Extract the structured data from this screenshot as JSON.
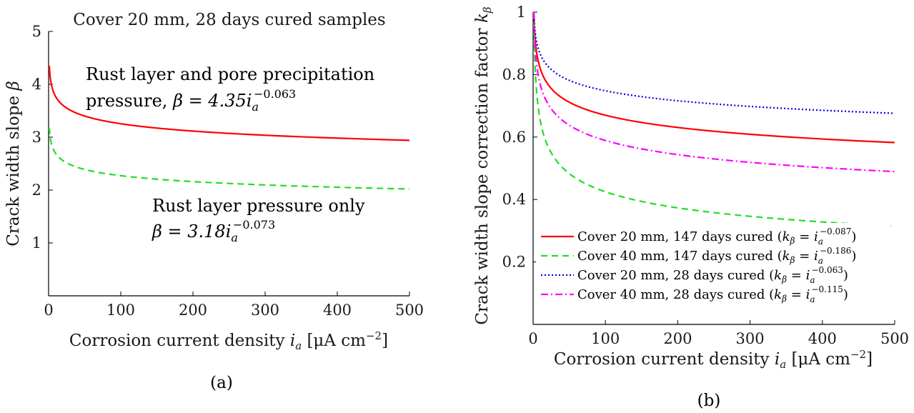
{
  "chart_data": [
    {
      "type": "line",
      "title": "Cover 20 mm, 28 days cured samples",
      "xlabel": "Corrosion current density i_a [μA cm^−2]",
      "ylabel": "Crack width slope β",
      "xlim": [
        0,
        500
      ],
      "ylim": [
        0,
        5
      ],
      "xticks": [
        0,
        100,
        200,
        300,
        400,
        500
      ],
      "yticks": [
        1,
        2,
        3,
        4,
        5
      ],
      "grid": false,
      "caption": "(a)",
      "series": [
        {
          "name": "",
          "color": "#ff0000",
          "style": "solid",
          "coef": 4.35,
          "exp": -0.063,
          "x": [
            1,
            5,
            10,
            20,
            50,
            100,
            150,
            200,
            250,
            300,
            350,
            400,
            450,
            500
          ],
          "values": [
            4.35,
            3.92,
            3.75,
            3.59,
            3.4,
            3.25,
            3.17,
            3.11,
            3.07,
            3.03,
            3.0,
            2.98,
            2.95,
            2.93
          ]
        },
        {
          "name": "",
          "color": "#22dd22",
          "style": "dashed",
          "coef": 3.18,
          "exp": -0.073,
          "x": [
            1,
            5,
            10,
            20,
            50,
            100,
            150,
            200,
            250,
            300,
            350,
            400,
            450,
            500
          ],
          "values": [
            3.18,
            2.81,
            2.68,
            2.55,
            2.4,
            2.28,
            2.22,
            2.17,
            2.14,
            2.11,
            2.08,
            2.06,
            2.04,
            2.03
          ]
        }
      ],
      "annotations": [
        {
          "line1": "Rust layer and pore precipitation",
          "line2_prefix": "pressure, ",
          "line2_lhs": "β = 4.35",
          "line2_var": "i",
          "line2_sub": "a",
          "line2_sup": "−0.063"
        },
        {
          "line1": "Rust layer pressure only",
          "line2_prefix": "",
          "line2_lhs": "β = 3.18",
          "line2_var": "i",
          "line2_sub": "a",
          "line2_sup": "−0.073"
        }
      ]
    },
    {
      "type": "line",
      "title": "",
      "xlabel": "Corrosion current density i_a [μA cm^−2]",
      "ylabel": "Crack width slope correction factor k_β",
      "xlim": [
        0,
        500
      ],
      "ylim": [
        0,
        1
      ],
      "xticks": [
        0,
        100,
        200,
        300,
        400,
        500
      ],
      "yticks": [
        0.2,
        0.4,
        0.6,
        0.8,
        1
      ],
      "ytick_labels": [
        "0.2",
        "0.4",
        "0.6",
        "0.8",
        "1"
      ],
      "grid": false,
      "legend_position": "bottom-right",
      "caption": "(b)",
      "series": [
        {
          "name": "Cover 20 mm, 147 days cured",
          "exp_label": "−0.087",
          "color": "#ff0000",
          "style": "solid",
          "exp": -0.087,
          "x": [
            1,
            5,
            10,
            20,
            50,
            100,
            150,
            200,
            250,
            300,
            350,
            400,
            450,
            500
          ],
          "values": [
            1.0,
            0.87,
            0.82,
            0.77,
            0.71,
            0.67,
            0.65,
            0.63,
            0.62,
            0.61,
            0.6,
            0.59,
            0.59,
            0.58
          ]
        },
        {
          "name": "Cover 40 mm, 147 days cured",
          "exp_label": "−0.186",
          "color": "#22dd22",
          "style": "dashed",
          "exp": -0.186,
          "x": [
            1,
            5,
            10,
            20,
            50,
            100,
            150,
            200,
            250,
            300,
            350,
            400,
            450,
            500
          ],
          "values": [
            1.0,
            0.74,
            0.65,
            0.57,
            0.48,
            0.42,
            0.39,
            0.37,
            0.36,
            0.35,
            0.34,
            0.33,
            0.32,
            0.31
          ]
        },
        {
          "name": "Cover 20 mm, 28 days cured",
          "exp_label": "−0.063",
          "color": "#0000dd",
          "style": "dotted",
          "exp": -0.063,
          "x": [
            1,
            5,
            10,
            20,
            50,
            100,
            150,
            200,
            250,
            300,
            350,
            400,
            450,
            500
          ],
          "values": [
            1.0,
            0.9,
            0.86,
            0.83,
            0.78,
            0.75,
            0.73,
            0.72,
            0.71,
            0.7,
            0.69,
            0.69,
            0.68,
            0.68
          ]
        },
        {
          "name": "Cover 40 mm, 28 days cured",
          "exp_label": "−0.115",
          "color": "#ff00ff",
          "style": "dashdot",
          "exp": -0.115,
          "x": [
            1,
            5,
            10,
            20,
            50,
            100,
            150,
            200,
            250,
            300,
            350,
            400,
            450,
            500
          ],
          "values": [
            1.0,
            0.83,
            0.77,
            0.71,
            0.64,
            0.59,
            0.56,
            0.54,
            0.53,
            0.52,
            0.51,
            0.5,
            0.5,
            0.49
          ]
        }
      ]
    }
  ]
}
